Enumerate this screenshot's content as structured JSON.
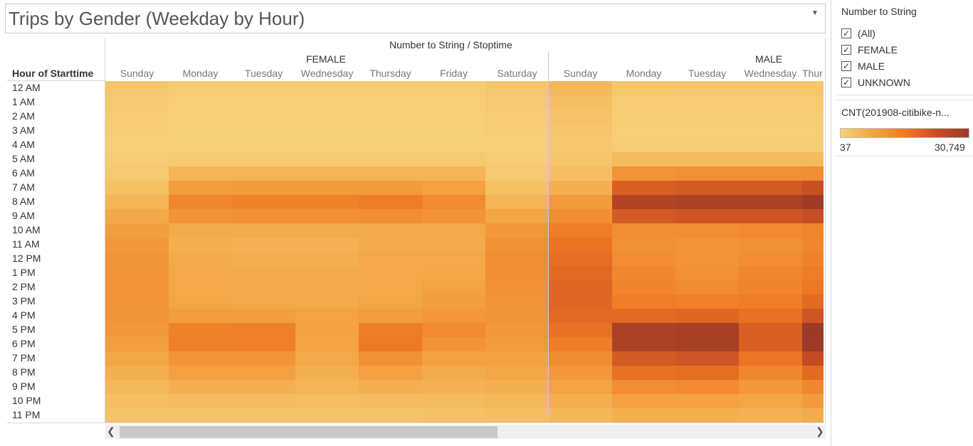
{
  "title": "Trips by Gender (Weekday by Hour)",
  "column_group_title": "Number to String / Stoptime",
  "genders": [
    "FEMALE",
    "MALE"
  ],
  "days": [
    "Sunday",
    "Monday",
    "Tuesday",
    "Wednesday",
    "Thursday",
    "Friday",
    "Saturday"
  ],
  "male_days_visible": [
    "Sunday",
    "Monday",
    "Tuesday",
    "Wednesday",
    "Thur"
  ],
  "row_axis_title": "Hour of Starttime",
  "hours": [
    "12 AM",
    "1 AM",
    "2 AM",
    "3 AM",
    "4 AM",
    "5 AM",
    "6 AM",
    "7 AM",
    "8 AM",
    "9 AM",
    "10 AM",
    "11 AM",
    "12 PM",
    "1 PM",
    "2 PM",
    "3 PM",
    "4 PM",
    "5 PM",
    "6 PM",
    "7 PM",
    "8 PM",
    "9 PM",
    "10 PM",
    "11 PM"
  ],
  "filter": {
    "title": "Number to String",
    "items": [
      {
        "label": "(All)",
        "checked": true
      },
      {
        "label": "FEMALE",
        "checked": true
      },
      {
        "label": "MALE",
        "checked": true
      },
      {
        "label": "UNKNOWN",
        "checked": true
      }
    ]
  },
  "legend": {
    "title": "CNT(201908-citibike-n...",
    "min_label": "37",
    "max_label": "30,749",
    "colors": [
      "#f6d27a",
      "#f3a544",
      "#ef7a24",
      "#c94f25",
      "#9a3a27"
    ]
  },
  "chart_data": {
    "type": "heatmap",
    "rows": [
      "12 AM",
      "1 AM",
      "2 AM",
      "3 AM",
      "4 AM",
      "5 AM",
      "6 AM",
      "7 AM",
      "8 AM",
      "9 AM",
      "10 AM",
      "11 AM",
      "12 PM",
      "1 PM",
      "2 PM",
      "3 PM",
      "4 PM",
      "5 PM",
      "6 PM",
      "7 PM",
      "8 PM",
      "9 PM",
      "10 PM",
      "11 PM"
    ],
    "column_groups": [
      {
        "name": "FEMALE",
        "columns": [
          "Sunday",
          "Monday",
          "Tuesday",
          "Wednesday",
          "Thursday",
          "Friday",
          "Saturday"
        ],
        "values": [
          [
            2000,
            1000,
            1000,
            1000,
            1000,
            1000,
            2000
          ],
          [
            1500,
            700,
            600,
            600,
            700,
            700,
            1500
          ],
          [
            1200,
            500,
            500,
            500,
            500,
            500,
            1200
          ],
          [
            900,
            400,
            400,
            400,
            400,
            400,
            900
          ],
          [
            700,
            400,
            400,
            400,
            400,
            400,
            700
          ],
          [
            900,
            1500,
            1500,
            1500,
            1500,
            1500,
            900
          ],
          [
            1500,
            5000,
            5000,
            5000,
            5000,
            5000,
            1500
          ],
          [
            3000,
            9000,
            9500,
            9500,
            9500,
            8500,
            3000
          ],
          [
            5000,
            13000,
            14000,
            14000,
            15000,
            12500,
            5000
          ],
          [
            7000,
            11000,
            11500,
            11500,
            12000,
            11000,
            7500
          ],
          [
            9000,
            6500,
            6500,
            6500,
            7000,
            7000,
            10000
          ],
          [
            10000,
            6000,
            5500,
            5500,
            6500,
            6500,
            11500
          ],
          [
            10500,
            6500,
            6000,
            6000,
            7000,
            7000,
            12000
          ],
          [
            11000,
            7000,
            6500,
            6500,
            7000,
            7500,
            12000
          ],
          [
            11000,
            7000,
            6500,
            6500,
            7000,
            8000,
            11500
          ],
          [
            11000,
            7500,
            7000,
            6500,
            7500,
            9000,
            11000
          ],
          [
            10500,
            9000,
            9000,
            8000,
            9000,
            10000,
            10500
          ],
          [
            10000,
            14000,
            14500,
            8500,
            15000,
            12500,
            10000
          ],
          [
            9000,
            14500,
            14500,
            8000,
            15500,
            11000,
            9500
          ],
          [
            7500,
            11000,
            11000,
            7000,
            11500,
            8500,
            8500
          ],
          [
            6000,
            8500,
            8500,
            6000,
            8500,
            6500,
            7500
          ],
          [
            4500,
            6000,
            6000,
            5000,
            6000,
            5500,
            6000
          ],
          [
            3500,
            4000,
            4000,
            3500,
            4000,
            4000,
            4500
          ],
          [
            2500,
            2500,
            2500,
            2500,
            2500,
            3000,
            3500
          ]
        ]
      },
      {
        "name": "MALE",
        "columns": [
          "Sunday",
          "Monday",
          "Tuesday",
          "Wednesday",
          "Thur"
        ],
        "values": [
          [
            4500,
            2000,
            2000,
            2000,
            2000
          ],
          [
            3500,
            1300,
            1200,
            1200,
            1300
          ],
          [
            2800,
            900,
            900,
            900,
            900
          ],
          [
            2200,
            800,
            800,
            800,
            800
          ],
          [
            1800,
            900,
            900,
            900,
            900
          ],
          [
            2200,
            4000,
            4000,
            4000,
            4000
          ],
          [
            3500,
            11000,
            11500,
            11500,
            12000
          ],
          [
            6000,
            20000,
            21000,
            21000,
            23000
          ],
          [
            9500,
            27000,
            28000,
            28000,
            30000
          ],
          [
            12000,
            21000,
            22000,
            22000,
            23500
          ],
          [
            15000,
            12000,
            12000,
            12500,
            13500
          ],
          [
            16500,
            11500,
            11000,
            11500,
            13000
          ],
          [
            17500,
            12000,
            11000,
            12000,
            14000
          ],
          [
            18500,
            13000,
            11500,
            13000,
            15000
          ],
          [
            19000,
            13500,
            12500,
            13500,
            16000
          ],
          [
            19000,
            15000,
            14500,
            15000,
            18000
          ],
          [
            18500,
            18500,
            19000,
            17000,
            22000
          ],
          [
            17000,
            28000,
            28500,
            20000,
            30749
          ],
          [
            15000,
            28000,
            28500,
            20000,
            30500
          ],
          [
            12500,
            21000,
            22000,
            16500,
            24000
          ],
          [
            10000,
            17000,
            17500,
            13000,
            18000
          ],
          [
            8000,
            12000,
            12500,
            10000,
            13000
          ],
          [
            6000,
            8500,
            8500,
            7500,
            9500
          ],
          [
            4500,
            6000,
            6000,
            5500,
            6500
          ]
        ]
      }
    ],
    "colorbar": {
      "min": 37,
      "max": 30749,
      "label": "CNT(201908-citibike-n..."
    }
  }
}
